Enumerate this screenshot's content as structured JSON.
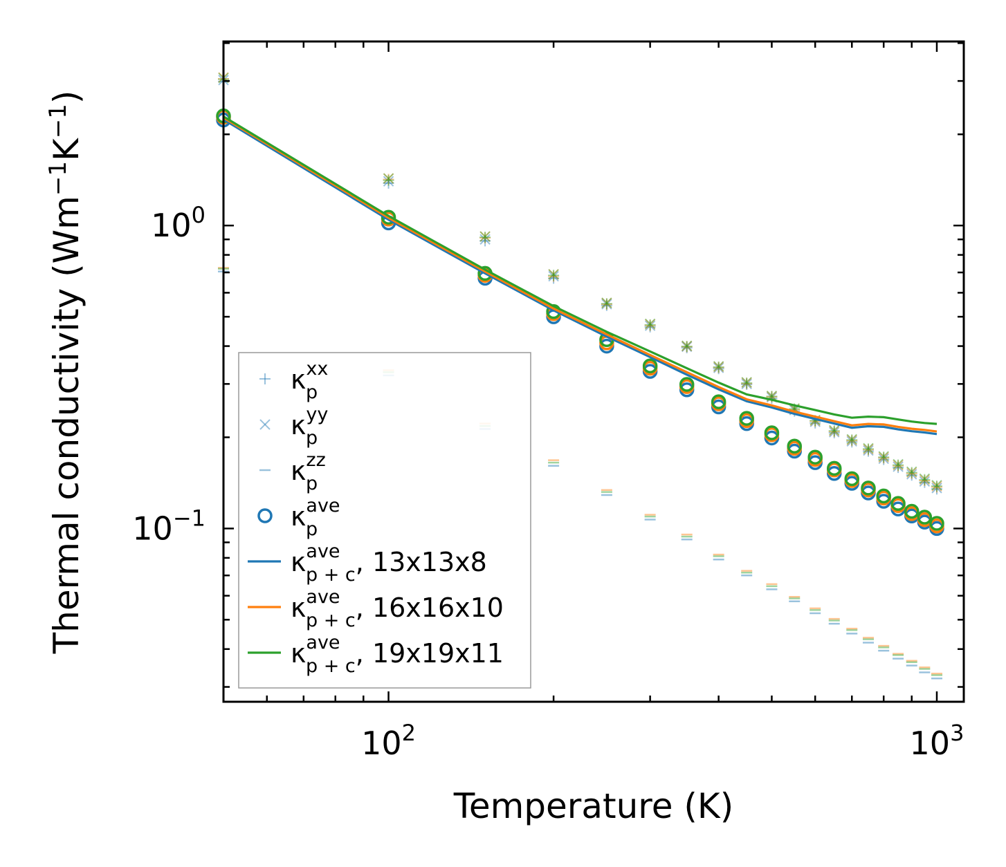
{
  "chart_data": {
    "type": "scatter",
    "title": "",
    "xlabel": "Temperature (K)",
    "ylabel_parts": {
      "prefix": "Thermal conductivity (Wm",
      "exp1": "−1",
      "mid": "K",
      "exp2": "−1",
      "suffix": ")"
    },
    "xscale": "log",
    "yscale": "log",
    "xlim": [
      50,
      1120
    ],
    "ylim": [
      0.0268,
      4.05
    ],
    "xticks": [
      {
        "value": 100,
        "base": "10",
        "exp": "2"
      },
      {
        "value": 1000,
        "base": "10",
        "exp": "3"
      }
    ],
    "yticks": [
      {
        "value": 0.1,
        "base": "10",
        "exp": "−1"
      },
      {
        "value": 1.0,
        "base": "10",
        "exp": "0"
      }
    ],
    "grid": false,
    "legend_position": "lower-left",
    "legend": [
      {
        "key": "kxx",
        "marker": "plus",
        "color": "#1f77b4",
        "base": "κ",
        "sub": "p",
        "sup": "xx",
        "tail": ""
      },
      {
        "key": "kyy",
        "marker": "x",
        "color": "#1f77b4",
        "base": "κ",
        "sub": "p",
        "sup": "yy",
        "tail": ""
      },
      {
        "key": "kzz",
        "marker": "dash",
        "color": "#1f77b4",
        "base": "κ",
        "sub": "p",
        "sup": "zz",
        "tail": ""
      },
      {
        "key": "kave",
        "marker": "circle",
        "color": "#1f77b4",
        "base": "κ",
        "sub": "p",
        "sup": "ave",
        "tail": ""
      },
      {
        "key": "l13",
        "marker": "line",
        "color": "#1f77b4",
        "base": "κ",
        "sub": "p + c",
        "sup": "ave",
        "tail": ", 13x13x8"
      },
      {
        "key": "l16",
        "marker": "line",
        "color": "#ff7f0e",
        "base": "κ",
        "sub": "p + c",
        "sup": "ave",
        "tail": ", 16x16x10"
      },
      {
        "key": "l19",
        "marker": "line",
        "color": "#2ca02c",
        "base": "κ",
        "sub": "p + c",
        "sup": "ave",
        "tail": ", 19x19x11"
      }
    ],
    "x": [
      50,
      100,
      150,
      200,
      250,
      300,
      350,
      400,
      450,
      500,
      550,
      600,
      650,
      700,
      750,
      800,
      850,
      900,
      950,
      1000
    ],
    "series": [
      {
        "name": "13x13x8",
        "color": "#1f77b4",
        "kxx": [
          2.99,
          1.38,
          0.89,
          0.67,
          0.545,
          0.463,
          0.395,
          0.337,
          0.299,
          0.269,
          0.244,
          0.223,
          0.207,
          0.193,
          0.18,
          0.169,
          0.159,
          0.15,
          0.142,
          0.135
        ],
        "kyy": [
          3.02,
          1.4,
          0.9,
          0.68,
          0.55,
          0.467,
          0.398,
          0.339,
          0.3,
          0.271,
          0.246,
          0.225,
          0.208,
          0.194,
          0.181,
          0.17,
          0.16,
          0.151,
          0.143,
          0.136
        ],
        "kzz": [
          0.705,
          0.32,
          0.213,
          0.161,
          0.129,
          0.107,
          0.092,
          0.079,
          0.07,
          0.063,
          0.0575,
          0.0525,
          0.0485,
          0.045,
          0.042,
          0.0395,
          0.0372,
          0.0353,
          0.0335,
          0.032
        ],
        "kave": [
          2.23,
          1.02,
          0.67,
          0.5,
          0.4,
          0.33,
          0.287,
          0.252,
          0.222,
          0.199,
          0.18,
          0.165,
          0.152,
          0.141,
          0.131,
          0.123,
          0.116,
          0.11,
          0.105,
          0.1
        ],
        "kpc": [
          2.24,
          1.045,
          0.695,
          0.525,
          0.43,
          0.368,
          0.322,
          0.288,
          0.263,
          0.251,
          0.239,
          0.23,
          0.222,
          0.215,
          0.2175,
          0.2165,
          0.2125,
          0.2095,
          0.2075,
          0.205
        ]
      },
      {
        "name": "16x16x10",
        "color": "#ff7f0e",
        "kxx": [
          3.05,
          1.42,
          0.91,
          0.68,
          0.55,
          0.468,
          0.398,
          0.34,
          0.301,
          0.272,
          0.247,
          0.226,
          0.209,
          0.195,
          0.182,
          0.171,
          0.161,
          0.152,
          0.144,
          0.137
        ],
        "kyy": [
          3.08,
          1.43,
          0.92,
          0.69,
          0.555,
          0.472,
          0.4,
          0.342,
          0.303,
          0.273,
          0.248,
          0.227,
          0.21,
          0.196,
          0.183,
          0.172,
          0.162,
          0.153,
          0.145,
          0.138
        ],
        "kzz": [
          0.725,
          0.333,
          0.222,
          0.168,
          0.134,
          0.111,
          0.0955,
          0.082,
          0.0725,
          0.0655,
          0.0595,
          0.0545,
          0.0503,
          0.0467,
          0.0436,
          0.041,
          0.0386,
          0.0366,
          0.0348,
          0.0332
        ],
        "kave": [
          2.28,
          1.05,
          0.685,
          0.512,
          0.41,
          0.338,
          0.294,
          0.258,
          0.227,
          0.204,
          0.184,
          0.169,
          0.156,
          0.144,
          0.134,
          0.126,
          0.119,
          0.112,
          0.107,
          0.102
        ],
        "kpc": [
          2.27,
          1.06,
          0.705,
          0.532,
          0.437,
          0.374,
          0.328,
          0.293,
          0.267,
          0.255,
          0.243,
          0.234,
          0.226,
          0.219,
          0.2215,
          0.2205,
          0.2165,
          0.2135,
          0.2115,
          0.209
        ]
      },
      {
        "name": "19x19x11",
        "color": "#2ca02c",
        "kxx": [
          3.04,
          1.41,
          0.915,
          0.685,
          0.552,
          0.47,
          0.399,
          0.341,
          0.302,
          0.273,
          0.248,
          0.227,
          0.21,
          0.196,
          0.183,
          0.172,
          0.162,
          0.153,
          0.145,
          0.138
        ],
        "kyy": [
          3.07,
          1.43,
          0.92,
          0.69,
          0.556,
          0.474,
          0.401,
          0.343,
          0.304,
          0.274,
          0.249,
          0.228,
          0.211,
          0.197,
          0.184,
          0.173,
          0.163,
          0.154,
          0.146,
          0.139
        ],
        "kzz": [
          0.72,
          0.328,
          0.218,
          0.165,
          0.132,
          0.1095,
          0.094,
          0.081,
          0.0715,
          0.0645,
          0.0588,
          0.0538,
          0.0497,
          0.0462,
          0.0431,
          0.0405,
          0.0382,
          0.0362,
          0.0344,
          0.0328
        ],
        "kave": [
          2.3,
          1.065,
          0.695,
          0.52,
          0.42,
          0.344,
          0.299,
          0.262,
          0.231,
          0.207,
          0.187,
          0.172,
          0.158,
          0.146,
          0.136,
          0.128,
          0.121,
          0.114,
          0.109,
          0.104
        ],
        "kpc": [
          2.29,
          1.075,
          0.715,
          0.542,
          0.446,
          0.384,
          0.338,
          0.303,
          0.277,
          0.266,
          0.255,
          0.246,
          0.238,
          0.232,
          0.234,
          0.233,
          0.229,
          0.2255,
          0.223,
          0.2215
        ]
      }
    ]
  }
}
